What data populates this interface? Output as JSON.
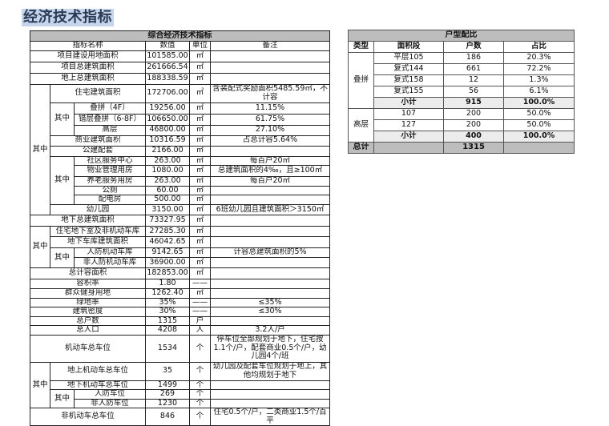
{
  "page_title": "经济技术指标",
  "left": {
    "title": "综合经济技术指标",
    "headers": [
      "指标名称",
      "数值",
      "单位",
      "备注"
    ],
    "group": "其中",
    "rows": [
      {
        "n": "项目建设用地面积",
        "v": "101585.00",
        "u": "㎡",
        "m": ""
      },
      {
        "n": "项目总建筑面积",
        "v": "261666.54",
        "u": "㎡",
        "m": ""
      },
      {
        "n": "地上总建筑面积",
        "v": "188338.59",
        "u": "㎡",
        "m": ""
      },
      {
        "n": "住宅建筑面积",
        "v": "172706.00",
        "u": "㎡",
        "m": "含装配式奖励面积5485.59㎡，不计容"
      },
      {
        "n": "叠拼（4F）",
        "v": "19256.00",
        "u": "㎡",
        "m": "11.15%"
      },
      {
        "n": "错层叠拼（6-8F）",
        "v": "106650.00",
        "u": "㎡",
        "m": "61.75%"
      },
      {
        "n": "高层",
        "v": "46800.00",
        "u": "㎡",
        "m": "27.10%"
      },
      {
        "n": "商业建筑面积",
        "v": "10316.59",
        "u": "㎡",
        "m": "占总计容5.64%"
      },
      {
        "n": "公建配套",
        "v": "2166.00",
        "u": "㎡",
        "m": ""
      },
      {
        "n": "社区服务中心",
        "v": "263.00",
        "u": "㎡",
        "m": "每百户20㎡"
      },
      {
        "n": "物业管理用房",
        "v": "1080.00",
        "u": "㎡",
        "m": "总建筑面积的4‰，且≥100㎡"
      },
      {
        "n": "养老服务用房",
        "v": "263.00",
        "u": "㎡",
        "m": "每百户20㎡"
      },
      {
        "n": "公厕",
        "v": "60.00",
        "u": "㎡",
        "m": ""
      },
      {
        "n": "配电房",
        "v": "500.00",
        "u": "㎡",
        "m": ""
      },
      {
        "n": "幼儿园",
        "v": "3150.00",
        "u": "㎡",
        "m": "6班幼儿园且建筑面积＞3150㎡"
      },
      {
        "n": "地下总建筑面积",
        "v": "73327.95",
        "u": "㎡",
        "m": ""
      },
      {
        "n": "住宅地下室及非机动车库",
        "v": "27285.30",
        "u": "㎡",
        "m": ""
      },
      {
        "n": "地下车库建筑面积",
        "v": "46042.65",
        "u": "㎡",
        "m": ""
      },
      {
        "n": "人防机动车库",
        "v": "9142.65",
        "u": "㎡",
        "m": "计容总建筑面积的5%"
      },
      {
        "n": "非人防机动车库",
        "v": "36900.00",
        "u": "㎡",
        "m": ""
      },
      {
        "n": "总计容面积",
        "v": "182853.00",
        "u": "㎡",
        "m": ""
      },
      {
        "n": "容积率",
        "v": "1.80",
        "u": "——",
        "m": ""
      },
      {
        "n": "群众健身用地",
        "v": "1262.40",
        "u": "㎡",
        "m": ""
      },
      {
        "n": "绿地率",
        "v": "35%",
        "u": "——",
        "m": "≤35%"
      },
      {
        "n": "建筑密度",
        "v": "30%",
        "u": "——",
        "m": "≤30%"
      },
      {
        "n": "总户数",
        "v": "1315",
        "u": "户",
        "m": ""
      },
      {
        "n": "总人口",
        "v": "4208",
        "u": "人",
        "m": "3.2人/户"
      },
      {
        "n": "机动车总车位",
        "v": "1534",
        "u": "个",
        "m": "停车位全部规划于地下，住宅按1.1个/户，配套商业0.5个/户，幼儿园4个/班"
      },
      {
        "n": "地上机动车总车位",
        "v": "35",
        "u": "个",
        "m": "幼儿园及配套车位规划于地上，其他均规划于地下"
      },
      {
        "n": "地下机动车总车位",
        "v": "1499",
        "u": "个",
        "m": ""
      },
      {
        "n": "人防车位",
        "v": "269",
        "u": "个",
        "m": ""
      },
      {
        "n": "非人防车位",
        "v": "1230",
        "u": "个",
        "m": ""
      },
      {
        "n": "非机动车总车位",
        "v": "846",
        "u": "个",
        "m": "住宅0.5个/户，二类商业1.5个/百平"
      }
    ]
  },
  "right": {
    "title": "户型配比",
    "headers": [
      "类型",
      "面积段",
      "户数",
      "占比"
    ],
    "g1": "叠拼",
    "g2": "高层",
    "rows": [
      {
        "a": "平层105",
        "c": "186",
        "p": "20.3%"
      },
      {
        "a": "复式144",
        "c": "661",
        "p": "72.2%"
      },
      {
        "a": "复式158",
        "c": "12",
        "p": "1.3%"
      },
      {
        "a": "复式155",
        "c": "56",
        "p": "6.1%"
      },
      {
        "a": "小计",
        "c": "915",
        "p": "100.0%"
      },
      {
        "a": "107",
        "c": "200",
        "p": "50.0%"
      },
      {
        "a": "127",
        "c": "200",
        "p": "50.0%"
      },
      {
        "a": "小计",
        "c": "400",
        "p": "100.0%"
      }
    ],
    "total_label": "总计",
    "total": "1315"
  }
}
